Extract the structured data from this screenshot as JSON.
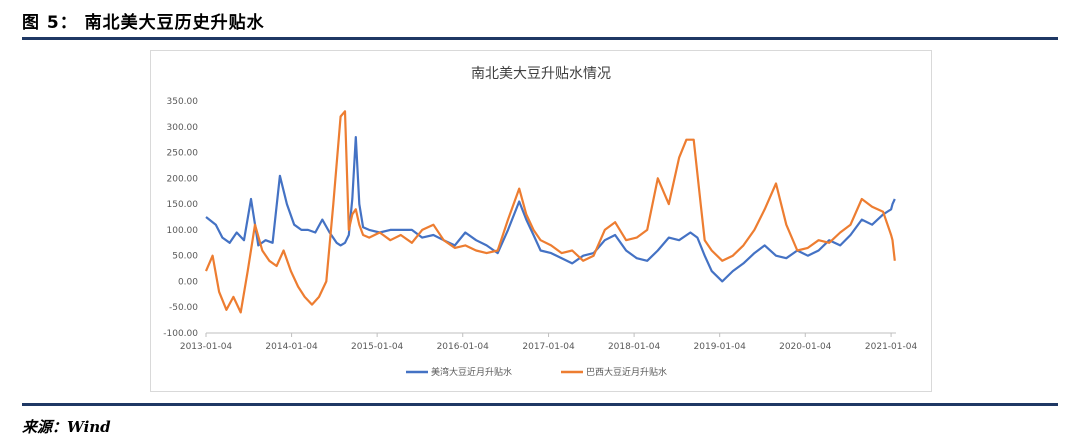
{
  "figure": {
    "label": "图 5：",
    "title": "南北美大豆历史升贴水",
    "source": "来源：Wind"
  },
  "chart_data": {
    "type": "line",
    "title": "南北美大豆升贴水情况",
    "xlabel": "",
    "ylabel": "",
    "ylim": [
      -100,
      350
    ],
    "xlim": [
      "2013-01-04",
      "2021-01-04"
    ],
    "yticks": [
      "-100.00",
      "-50.00",
      "0.00",
      "50.00",
      "100.00",
      "150.00",
      "200.00",
      "250.00",
      "300.00",
      "350.00"
    ],
    "xticks": [
      "2013-01-04",
      "2014-01-04",
      "2015-01-04",
      "2016-01-04",
      "2017-01-04",
      "2018-01-04",
      "2019-01-04",
      "2020-01-04",
      "2021-01-04"
    ],
    "grid": false,
    "legend_position": "bottom",
    "series": [
      {
        "name": "美湾大豆近月升贴水",
        "color": "#4472c4",
        "x": [
          "2013-01-04",
          "2013-02-15",
          "2013-03-15",
          "2013-04-15",
          "2013-05-15",
          "2013-06-15",
          "2013-07-15",
          "2013-08-15",
          "2013-09-15",
          "2013-10-15",
          "2013-11-15",
          "2013-12-15",
          "2014-01-15",
          "2014-02-15",
          "2014-03-15",
          "2014-04-15",
          "2014-05-15",
          "2014-06-15",
          "2014-07-15",
          "2014-08-01",
          "2014-08-20",
          "2014-09-05",
          "2014-09-20",
          "2014-10-05",
          "2014-10-20",
          "2014-11-05",
          "2014-12-01",
          "2015-01-15",
          "2015-03-01",
          "2015-04-15",
          "2015-06-01",
          "2015-07-15",
          "2015-09-01",
          "2015-10-15",
          "2015-12-01",
          "2016-01-15",
          "2016-03-01",
          "2016-04-15",
          "2016-06-01",
          "2016-07-15",
          "2016-09-01",
          "2016-10-01",
          "2016-11-01",
          "2016-12-01",
          "2017-01-15",
          "2017-03-01",
          "2017-04-15",
          "2017-06-01",
          "2017-07-15",
          "2017-09-01",
          "2017-10-15",
          "2017-12-01",
          "2018-01-15",
          "2018-03-01",
          "2018-04-15",
          "2018-06-01",
          "2018-07-15",
          "2018-09-01",
          "2018-10-01",
          "2018-11-01",
          "2018-12-01",
          "2019-01-15",
          "2019-03-01",
          "2019-04-15",
          "2019-06-01",
          "2019-07-15",
          "2019-09-01",
          "2019-10-15",
          "2019-12-01",
          "2020-01-15",
          "2020-03-01",
          "2020-04-15",
          "2020-06-01",
          "2020-07-15",
          "2020-09-01",
          "2020-10-15",
          "2020-12-01",
          "2021-01-04",
          "2021-01-10",
          "2021-01-20"
        ],
        "values": [
          125,
          110,
          85,
          75,
          95,
          80,
          160,
          70,
          80,
          75,
          205,
          150,
          110,
          100,
          100,
          95,
          120,
          95,
          75,
          70,
          75,
          90,
          160,
          280,
          150,
          105,
          100,
          95,
          100,
          100,
          100,
          85,
          90,
          80,
          70,
          95,
          80,
          70,
          55,
          100,
          155,
          120,
          90,
          60,
          55,
          45,
          35,
          50,
          55,
          80,
          90,
          60,
          45,
          40,
          60,
          85,
          80,
          95,
          85,
          50,
          20,
          0,
          20,
          35,
          55,
          70,
          50,
          45,
          60,
          50,
          60,
          80,
          70,
          90,
          120,
          110,
          130,
          140,
          150,
          160
        ]
      },
      {
        "name": "巴西大豆近月升贴水",
        "color": "#ed7d31",
        "x": [
          "2013-01-04",
          "2013-02-01",
          "2013-03-01",
          "2013-04-01",
          "2013-05-01",
          "2013-06-01",
          "2013-07-01",
          "2013-08-01",
          "2013-09-01",
          "2013-10-01",
          "2013-11-01",
          "2013-12-01",
          "2014-01-01",
          "2014-02-01",
          "2014-03-01",
          "2014-04-01",
          "2014-05-01",
          "2014-06-01",
          "2014-07-01",
          "2014-08-01",
          "2014-08-20",
          "2014-09-05",
          "2014-09-20",
          "2014-10-05",
          "2014-10-20",
          "2014-11-05",
          "2014-12-01",
          "2015-01-15",
          "2015-03-01",
          "2015-04-15",
          "2015-06-01",
          "2015-07-15",
          "2015-09-01",
          "2015-10-15",
          "2015-12-01",
          "2016-01-15",
          "2016-03-01",
          "2016-04-15",
          "2016-06-01",
          "2016-07-15",
          "2016-09-01",
          "2016-10-01",
          "2016-11-01",
          "2016-12-01",
          "2017-01-15",
          "2017-03-01",
          "2017-04-15",
          "2017-06-01",
          "2017-07-15",
          "2017-09-01",
          "2017-10-15",
          "2017-12-01",
          "2018-01-15",
          "2018-03-01",
          "2018-04-15",
          "2018-06-01",
          "2018-07-15",
          "2018-08-15",
          "2018-09-15",
          "2018-10-15",
          "2018-11-01",
          "2018-12-01",
          "2019-01-15",
          "2019-03-01",
          "2019-04-15",
          "2019-06-01",
          "2019-07-15",
          "2019-09-01",
          "2019-10-15",
          "2019-12-01",
          "2020-01-15",
          "2020-03-01",
          "2020-04-15",
          "2020-06-01",
          "2020-07-15",
          "2020-09-01",
          "2020-10-15",
          "2020-12-01",
          "2021-01-04",
          "2021-01-10",
          "2021-01-20"
        ],
        "values": [
          20,
          50,
          -20,
          -55,
          -30,
          -60,
          20,
          110,
          60,
          40,
          30,
          60,
          20,
          -10,
          -30,
          -45,
          -30,
          0,
          150,
          320,
          330,
          100,
          130,
          140,
          110,
          90,
          85,
          95,
          80,
          90,
          75,
          100,
          110,
          80,
          65,
          70,
          60,
          55,
          60,
          120,
          180,
          130,
          100,
          80,
          70,
          55,
          60,
          40,
          50,
          100,
          115,
          80,
          85,
          100,
          200,
          150,
          240,
          275,
          275,
          150,
          80,
          60,
          40,
          50,
          70,
          100,
          140,
          190,
          110,
          60,
          65,
          80,
          75,
          95,
          110,
          160,
          145,
          135,
          90,
          80,
          40
        ]
      }
    ]
  }
}
